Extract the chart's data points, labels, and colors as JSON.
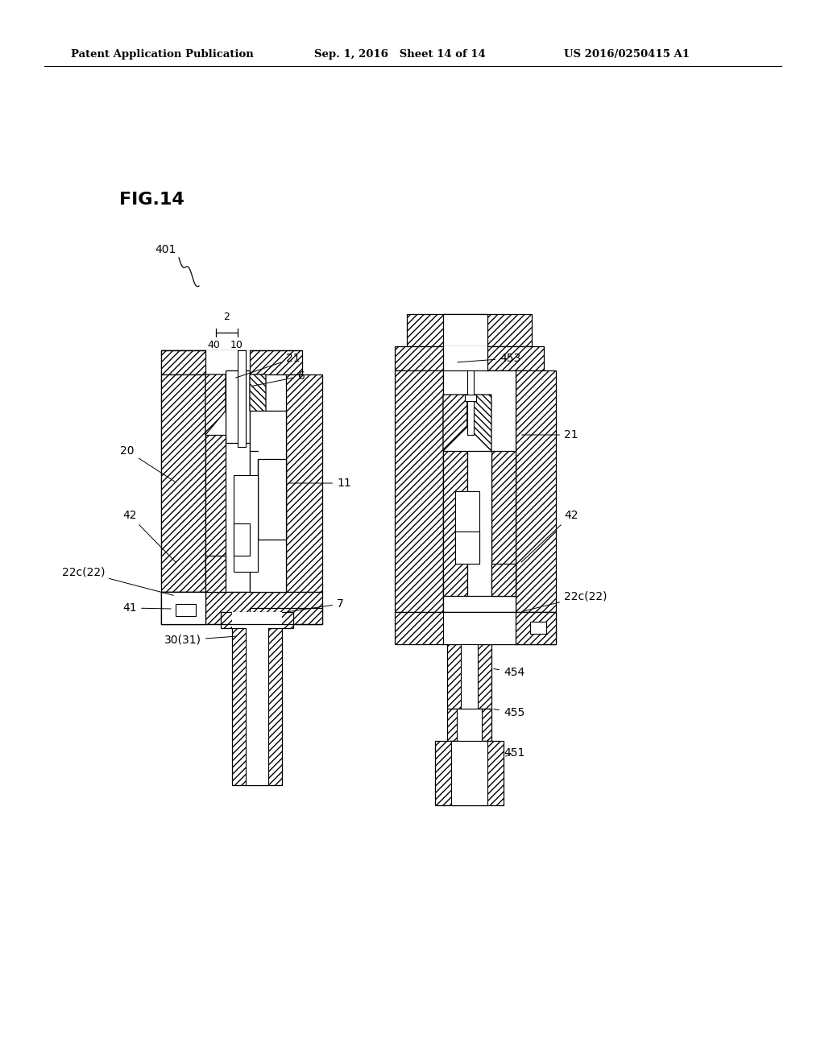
{
  "header_left": "Patent Application Publication",
  "header_mid": "Sep. 1, 2016   Sheet 14 of 14",
  "header_right": "US 2016/0250415 A1",
  "fig_label": "FIG.14",
  "background": "#ffffff",
  "fig_width": 10.24,
  "fig_height": 13.2,
  "dpi": 100
}
